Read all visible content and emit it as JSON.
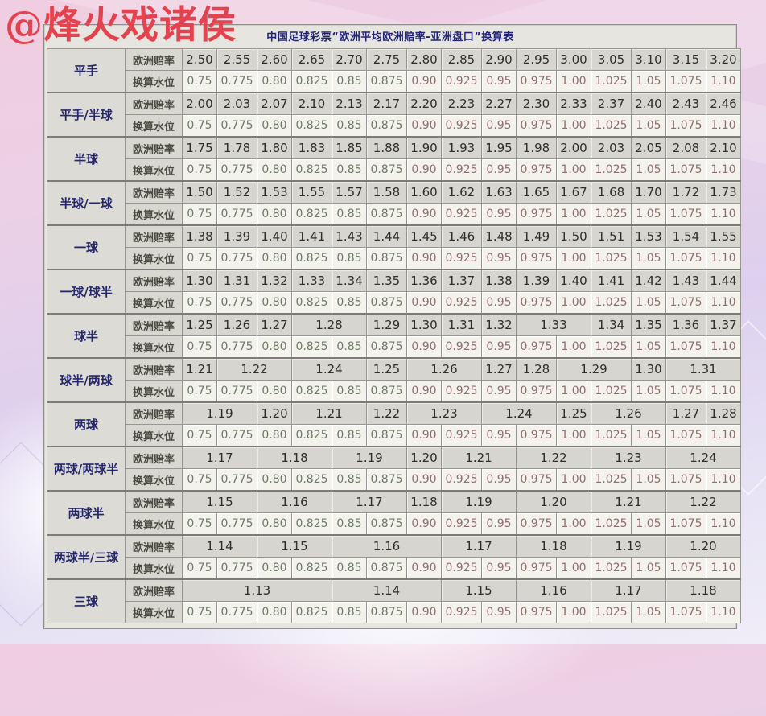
{
  "watermark": "@烽火戏诸侯",
  "table": {
    "title": "中国足球彩票“欧洲平均欧洲赔率-亚洲盘口”换算表",
    "odds_header": "欧洲赔率",
    "water_header": "换算水位",
    "water_values": [
      "0.75",
      "0.775",
      "0.80",
      "0.825",
      "0.85",
      "0.875",
      "0.90",
      "0.925",
      "0.95",
      "0.975",
      "1.00",
      "1.025",
      "1.05",
      "1.075",
      "1.10"
    ],
    "groups": [
      {
        "label": "平手",
        "odds": [
          [
            "2.50",
            1
          ],
          [
            "2.55",
            1
          ],
          [
            "2.60",
            1
          ],
          [
            "2.65",
            1
          ],
          [
            "2.70",
            1
          ],
          [
            "2.75",
            1
          ],
          [
            "2.80",
            1
          ],
          [
            "2.85",
            1
          ],
          [
            "2.90",
            1
          ],
          [
            "2.95",
            1
          ],
          [
            "3.00",
            1
          ],
          [
            "3.05",
            1
          ],
          [
            "3.10",
            1
          ],
          [
            "3.15",
            1
          ],
          [
            "3.20",
            1
          ]
        ]
      },
      {
        "label": "平手/半球",
        "odds": [
          [
            "2.00",
            1
          ],
          [
            "2.03",
            1
          ],
          [
            "2.07",
            1
          ],
          [
            "2.10",
            1
          ],
          [
            "2.13",
            1
          ],
          [
            "2.17",
            1
          ],
          [
            "2.20",
            1
          ],
          [
            "2.23",
            1
          ],
          [
            "2.27",
            1
          ],
          [
            "2.30",
            1
          ],
          [
            "2.33",
            1
          ],
          [
            "2.37",
            1
          ],
          [
            "2.40",
            1
          ],
          [
            "2.43",
            1
          ],
          [
            "2.46",
            1
          ]
        ]
      },
      {
        "label": "半球",
        "odds": [
          [
            "1.75",
            1
          ],
          [
            "1.78",
            1
          ],
          [
            "1.80",
            1
          ],
          [
            "1.83",
            1
          ],
          [
            "1.85",
            1
          ],
          [
            "1.88",
            1
          ],
          [
            "1.90",
            1
          ],
          [
            "1.93",
            1
          ],
          [
            "1.95",
            1
          ],
          [
            "1.98",
            1
          ],
          [
            "2.00",
            1
          ],
          [
            "2.03",
            1
          ],
          [
            "2.05",
            1
          ],
          [
            "2.08",
            1
          ],
          [
            "2.10",
            1
          ]
        ]
      },
      {
        "label": "半球/一球",
        "odds": [
          [
            "1.50",
            1
          ],
          [
            "1.52",
            1
          ],
          [
            "1.53",
            1
          ],
          [
            "1.55",
            1
          ],
          [
            "1.57",
            1
          ],
          [
            "1.58",
            1
          ],
          [
            "1.60",
            1
          ],
          [
            "1.62",
            1
          ],
          [
            "1.63",
            1
          ],
          [
            "1.65",
            1
          ],
          [
            "1.67",
            1
          ],
          [
            "1.68",
            1
          ],
          [
            "1.70",
            1
          ],
          [
            "1.72",
            1
          ],
          [
            "1.73",
            1
          ]
        ]
      },
      {
        "label": "一球",
        "odds": [
          [
            "1.38",
            1
          ],
          [
            "1.39",
            1
          ],
          [
            "1.40",
            1
          ],
          [
            "1.41",
            1
          ],
          [
            "1.43",
            1
          ],
          [
            "1.44",
            1
          ],
          [
            "1.45",
            1
          ],
          [
            "1.46",
            1
          ],
          [
            "1.48",
            1
          ],
          [
            "1.49",
            1
          ],
          [
            "1.50",
            1
          ],
          [
            "1.51",
            1
          ],
          [
            "1.53",
            1
          ],
          [
            "1.54",
            1
          ],
          [
            "1.55",
            1
          ]
        ]
      },
      {
        "label": "一球/球半",
        "odds": [
          [
            "1.30",
            1
          ],
          [
            "1.31",
            1
          ],
          [
            "1.32",
            1
          ],
          [
            "1.33",
            1
          ],
          [
            "1.34",
            1
          ],
          [
            "1.35",
            1
          ],
          [
            "1.36",
            1
          ],
          [
            "1.37",
            1
          ],
          [
            "1.38",
            1
          ],
          [
            "1.39",
            1
          ],
          [
            "1.40",
            1
          ],
          [
            "1.41",
            1
          ],
          [
            "1.42",
            1
          ],
          [
            "1.43",
            1
          ],
          [
            "1.44",
            1
          ]
        ]
      },
      {
        "label": "球半",
        "odds": [
          [
            "1.25",
            1
          ],
          [
            "1.26",
            1
          ],
          [
            "1.27",
            1
          ],
          [
            "1.28",
            2
          ],
          [
            "1.29",
            1
          ],
          [
            "1.30",
            1
          ],
          [
            "1.31",
            1
          ],
          [
            "1.32",
            1
          ],
          [
            "1.33",
            2
          ],
          [
            "1.34",
            1
          ],
          [
            "1.35",
            1
          ],
          [
            "1.36",
            1
          ],
          [
            "1.37",
            1
          ]
        ]
      },
      {
        "label": "球半/两球",
        "odds": [
          [
            "1.21",
            1
          ],
          [
            "1.22",
            2
          ],
          [
            "1.24",
            2
          ],
          [
            "1.25",
            1
          ],
          [
            "1.26",
            2
          ],
          [
            "1.27",
            1
          ],
          [
            "1.28",
            1
          ],
          [
            "1.29",
            2
          ],
          [
            "1.30",
            1
          ],
          [
            "1.31",
            2
          ]
        ]
      },
      {
        "label": "两球",
        "odds": [
          [
            "1.19",
            2
          ],
          [
            "1.20",
            1
          ],
          [
            "1.21",
            2
          ],
          [
            "1.22",
            1
          ],
          [
            "1.23",
            2
          ],
          [
            "1.24",
            2
          ],
          [
            "1.25",
            1
          ],
          [
            "1.26",
            2
          ],
          [
            "1.27",
            1
          ],
          [
            "1.28",
            1
          ]
        ]
      },
      {
        "label": "两球/两球半",
        "odds": [
          [
            "1.17",
            2
          ],
          [
            "1.18",
            2
          ],
          [
            "1.19",
            2
          ],
          [
            "1.20",
            1
          ],
          [
            "1.21",
            2
          ],
          [
            "1.22",
            2
          ],
          [
            "1.23",
            2
          ],
          [
            "1.24",
            2
          ]
        ]
      },
      {
        "label": "两球半",
        "odds": [
          [
            "1.15",
            2
          ],
          [
            "1.16",
            2
          ],
          [
            "1.17",
            2
          ],
          [
            "1.18",
            1
          ],
          [
            "1.19",
            2
          ],
          [
            "1.20",
            2
          ],
          [
            "1.21",
            2
          ],
          [
            "1.22",
            2
          ]
        ]
      },
      {
        "label": "两球半/三球",
        "odds": [
          [
            "1.14",
            2
          ],
          [
            "1.15",
            2
          ],
          [
            "1.16",
            3
          ],
          [
            "1.17",
            2
          ],
          [
            "1.18",
            2
          ],
          [
            "1.19",
            2
          ],
          [
            "1.20",
            2
          ]
        ]
      },
      {
        "label": "三球",
        "odds": [
          [
            "1.13",
            4
          ],
          [
            "1.14",
            3
          ],
          [
            "1.15",
            2
          ],
          [
            "1.16",
            2
          ],
          [
            "1.17",
            2
          ],
          [
            "1.18",
            2
          ]
        ]
      }
    ]
  },
  "colors": {
    "watermark_red": "#e2434f",
    "title_navy": "#232377",
    "label_navy": "#26266b",
    "water_green": "#6e7a68",
    "water_pink": "#8f6e6e",
    "water_pink_start_index": 6
  }
}
